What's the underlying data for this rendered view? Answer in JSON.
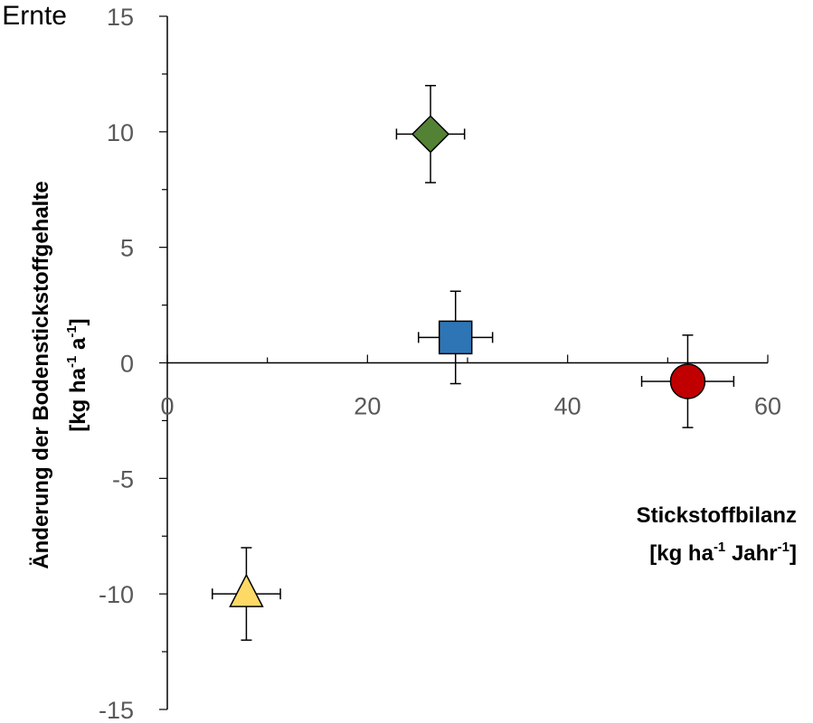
{
  "chart_data": {
    "type": "scatter",
    "title": "Ernte",
    "xlabel": {
      "line1": "Stickstoffbilanz",
      "line2_parts": [
        "[kg ha",
        "-1",
        " Jahr",
        "-1",
        "]"
      ]
    },
    "ylabel": {
      "line1": "Änderung der Bodenstickstoffgehalte",
      "line2_parts": [
        "[kg ha",
        "-1",
        " a",
        "-1",
        "]"
      ]
    },
    "xlim": [
      0,
      60
    ],
    "ylim": [
      -15,
      15
    ],
    "x_ticks": [
      0,
      20,
      40,
      60
    ],
    "y_ticks": [
      -15,
      -10,
      -5,
      0,
      5,
      10,
      15
    ],
    "x_tick_labels": [
      "0",
      "20",
      "40",
      "60"
    ],
    "y_tick_labels": [
      "-15",
      "-10",
      "-5",
      "0",
      "5",
      "10",
      "15"
    ],
    "grid": false,
    "points": [
      {
        "x": 26.3,
        "y": 9.9,
        "x_err": 3.4,
        "y_err": 2.1,
        "marker": "diamond",
        "color": "#548235"
      },
      {
        "x": 28.8,
        "y": 1.1,
        "x_err": 3.7,
        "y_err": 2.0,
        "marker": "square",
        "color": "#2E75B6"
      },
      {
        "x": 52.0,
        "y": -0.8,
        "x_err": 4.6,
        "y_err": 2.0,
        "marker": "circle",
        "color": "#C00000"
      },
      {
        "x": 7.9,
        "y": -10.0,
        "x_err": 3.4,
        "y_err": 2.0,
        "marker": "triangle",
        "color": "#FFD966"
      }
    ]
  }
}
